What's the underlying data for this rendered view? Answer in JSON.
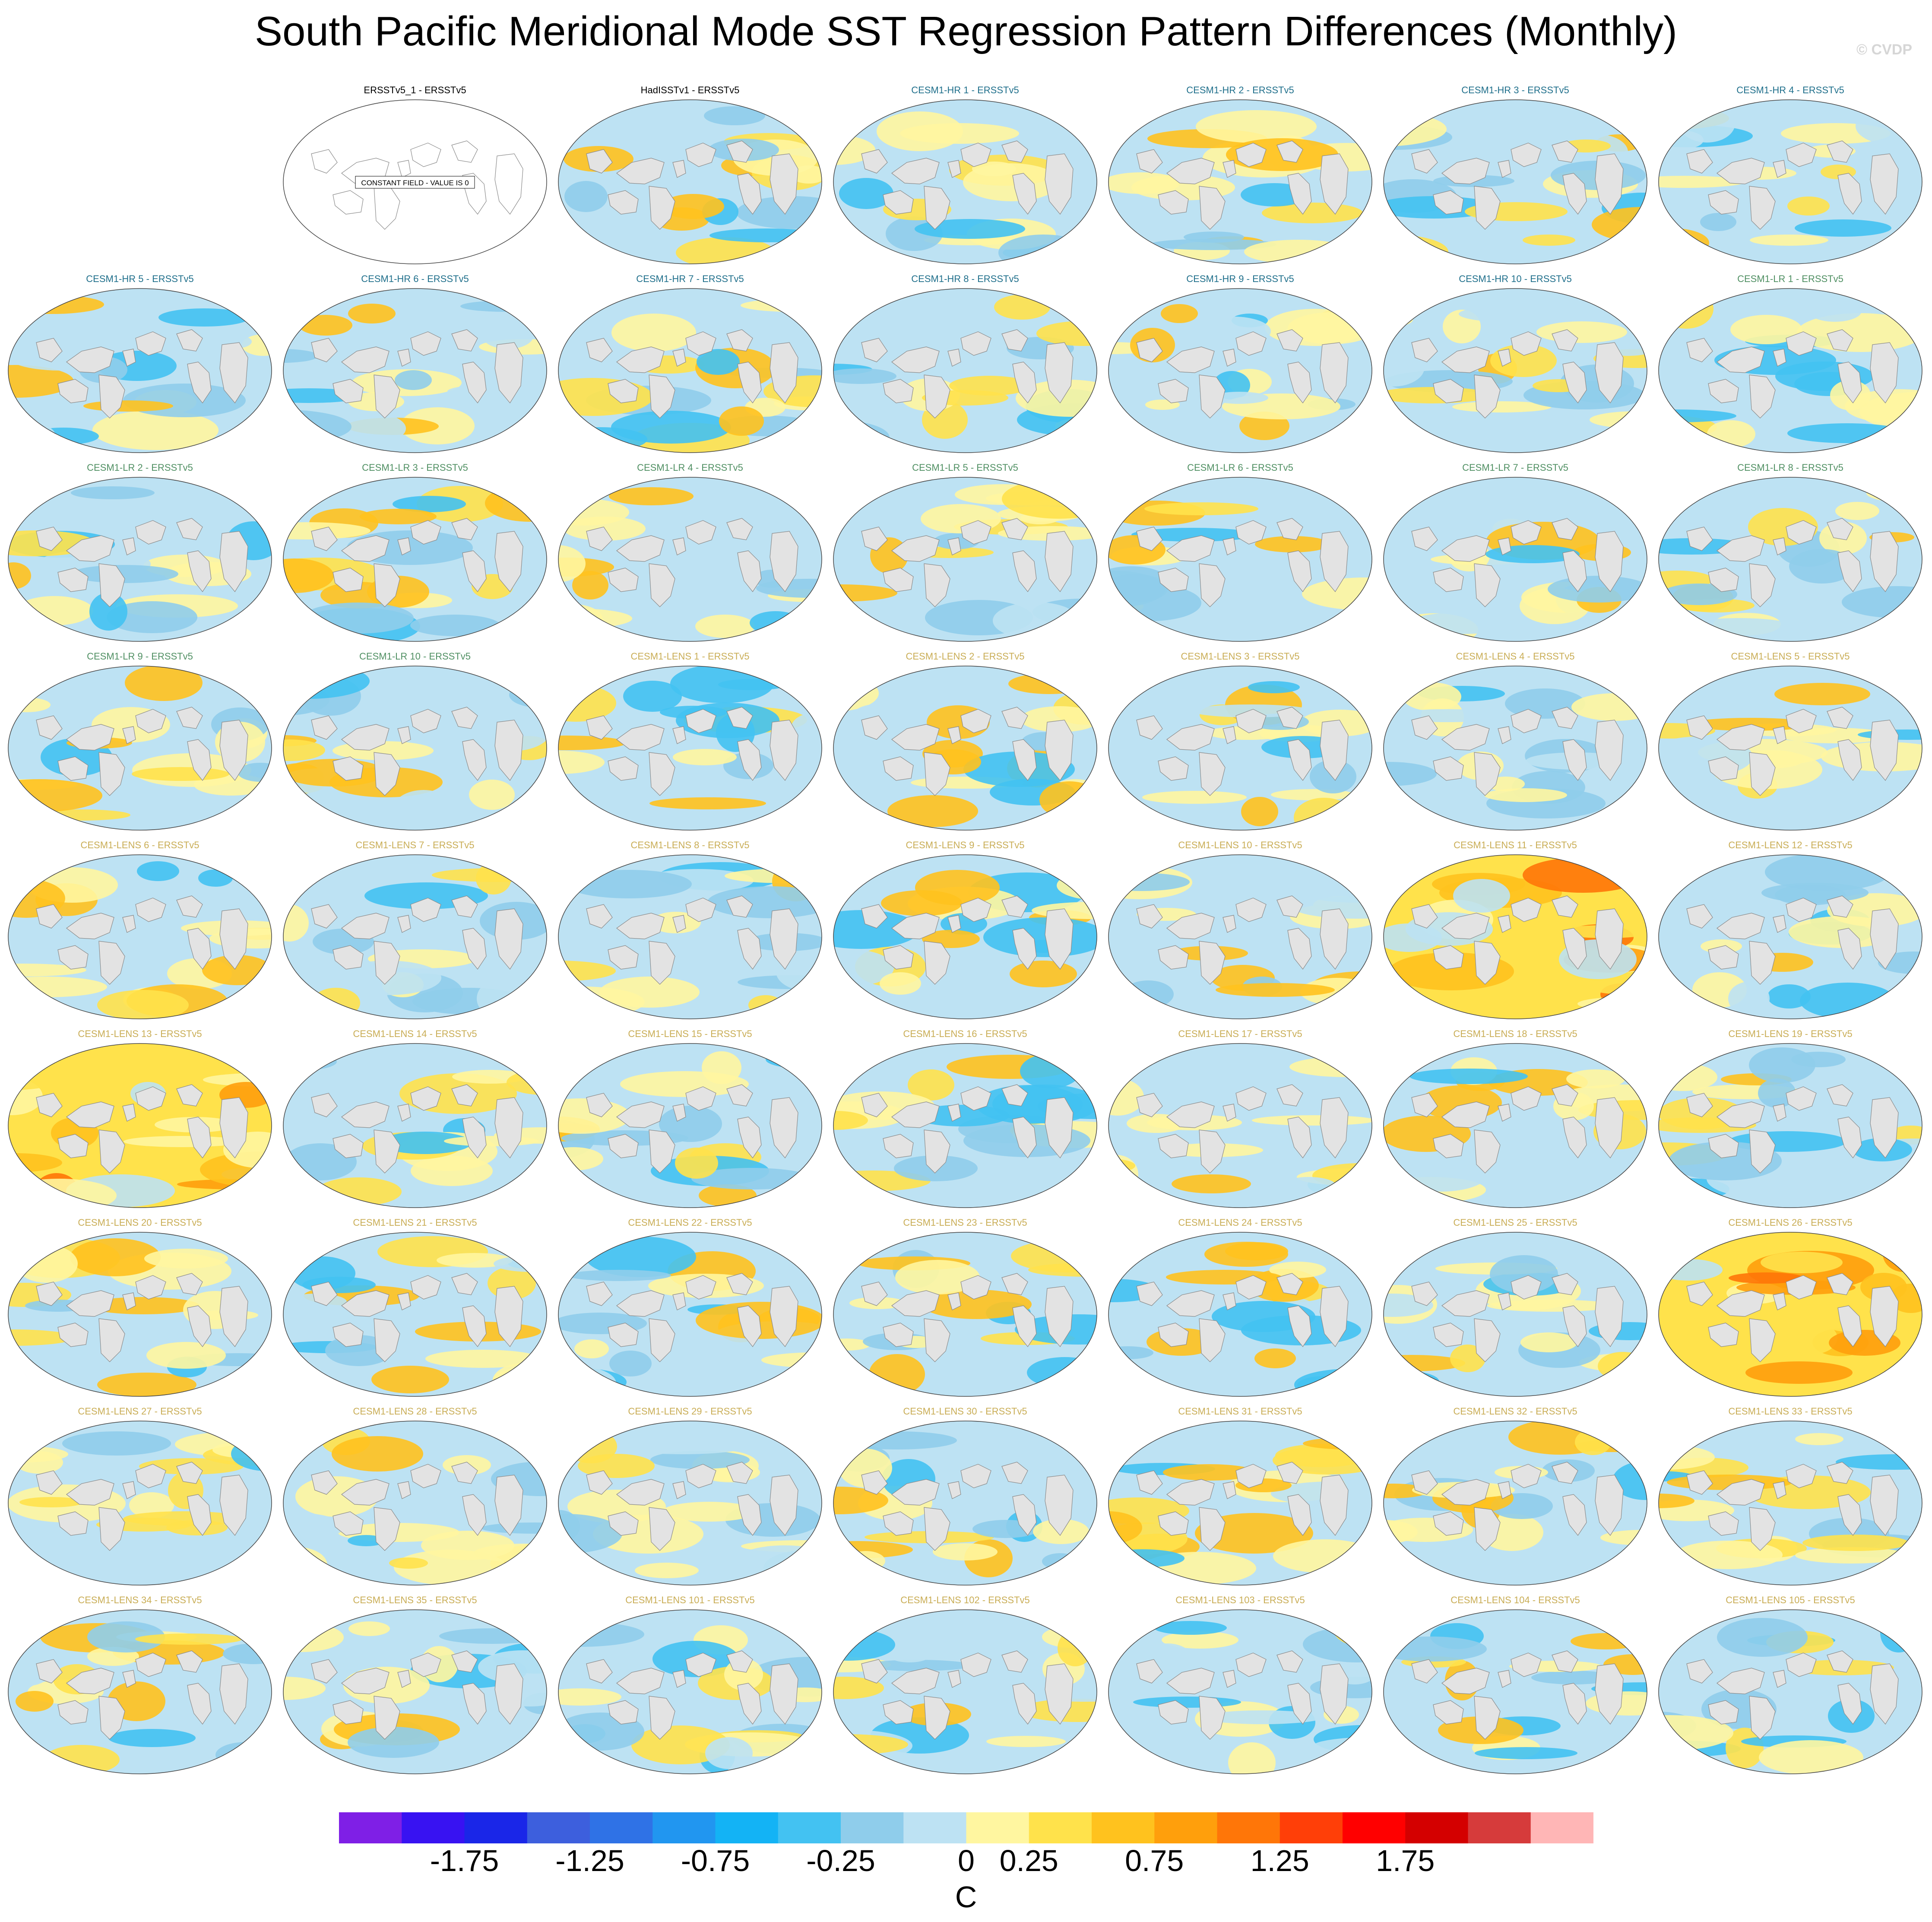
{
  "header": {
    "title": "South Pacific Meridional Mode SST Regression Pattern Differences (Monthly)",
    "watermark": "© CVDP"
  },
  "constant_field_label": "CONSTANT FIELD - VALUE IS 0",
  "panels": [
    {
      "title": "ERSSTv5_1 - ERSSTv5",
      "group": "obs",
      "constant": true
    },
    {
      "title": "HadISSTv1 - ERSSTv5",
      "group": "obs"
    },
    {
      "title": "CESM1-HR 1 - ERSSTv5",
      "group": "hr"
    },
    {
      "title": "CESM1-HR 2 - ERSSTv5",
      "group": "hr"
    },
    {
      "title": "CESM1-HR 3 - ERSSTv5",
      "group": "hr"
    },
    {
      "title": "CESM1-HR 4 - ERSSTv5",
      "group": "hr"
    },
    {
      "title": "CESM1-HR 5 - ERSSTv5",
      "group": "hr"
    },
    {
      "title": "CESM1-HR 6 - ERSSTv5",
      "group": "hr"
    },
    {
      "title": "CESM1-HR 7 - ERSSTv5",
      "group": "hr"
    },
    {
      "title": "CESM1-HR 8 - ERSSTv5",
      "group": "hr"
    },
    {
      "title": "CESM1-HR 9 - ERSSTv5",
      "group": "hr"
    },
    {
      "title": "CESM1-HR 10 - ERSSTv5",
      "group": "hr"
    },
    {
      "title": "CESM1-LR 1 - ERSSTv5",
      "group": "lr"
    },
    {
      "title": "CESM1-LR 2 - ERSSTv5",
      "group": "lr"
    },
    {
      "title": "CESM1-LR 3 - ERSSTv5",
      "group": "lr"
    },
    {
      "title": "CESM1-LR 4 - ERSSTv5",
      "group": "lr"
    },
    {
      "title": "CESM1-LR 5 - ERSSTv5",
      "group": "lr"
    },
    {
      "title": "CESM1-LR 6 - ERSSTv5",
      "group": "lr"
    },
    {
      "title": "CESM1-LR 7 - ERSSTv5",
      "group": "lr"
    },
    {
      "title": "CESM1-LR 8 - ERSSTv5",
      "group": "lr"
    },
    {
      "title": "CESM1-LR 9 - ERSSTv5",
      "group": "lr"
    },
    {
      "title": "CESM1-LR 10 - ERSSTv5",
      "group": "lr"
    },
    {
      "title": "CESM1-LENS 1 - ERSSTv5",
      "group": "lens"
    },
    {
      "title": "CESM1-LENS 2 - ERSSTv5",
      "group": "lens"
    },
    {
      "title": "CESM1-LENS 3 - ERSSTv5",
      "group": "lens"
    },
    {
      "title": "CESM1-LENS 4 - ERSSTv5",
      "group": "lens"
    },
    {
      "title": "CESM1-LENS 5 - ERSSTv5",
      "group": "lens"
    },
    {
      "title": "CESM1-LENS 6 - ERSSTv5",
      "group": "lens"
    },
    {
      "title": "CESM1-LENS 7 - ERSSTv5",
      "group": "lens"
    },
    {
      "title": "CESM1-LENS 8 - ERSSTv5",
      "group": "lens"
    },
    {
      "title": "CESM1-LENS 9 - ERSSTv5",
      "group": "lens"
    },
    {
      "title": "CESM1-LENS 10 - ERSSTv5",
      "group": "lens"
    },
    {
      "title": "CESM1-LENS 11 - ERSSTv5",
      "group": "lens",
      "strong": true
    },
    {
      "title": "CESM1-LENS 12 - ERSSTv5",
      "group": "lens"
    },
    {
      "title": "CESM1-LENS 13 - ERSSTv5",
      "group": "lens",
      "strong": true
    },
    {
      "title": "CESM1-LENS 14 - ERSSTv5",
      "group": "lens"
    },
    {
      "title": "CESM1-LENS 15 - ERSSTv5",
      "group": "lens"
    },
    {
      "title": "CESM1-LENS 16 - ERSSTv5",
      "group": "lens"
    },
    {
      "title": "CESM1-LENS 17 - ERSSTv5",
      "group": "lens"
    },
    {
      "title": "CESM1-LENS 18 - ERSSTv5",
      "group": "lens"
    },
    {
      "title": "CESM1-LENS 19 - ERSSTv5",
      "group": "lens"
    },
    {
      "title": "CESM1-LENS 20 - ERSSTv5",
      "group": "lens"
    },
    {
      "title": "CESM1-LENS 21 - ERSSTv5",
      "group": "lens"
    },
    {
      "title": "CESM1-LENS 22 - ERSSTv5",
      "group": "lens"
    },
    {
      "title": "CESM1-LENS 23 - ERSSTv5",
      "group": "lens"
    },
    {
      "title": "CESM1-LENS 24 - ERSSTv5",
      "group": "lens"
    },
    {
      "title": "CESM1-LENS 25 - ERSSTv5",
      "group": "lens"
    },
    {
      "title": "CESM1-LENS 26 - ERSSTv5",
      "group": "lens",
      "strong": true
    },
    {
      "title": "CESM1-LENS 27 - ERSSTv5",
      "group": "lens"
    },
    {
      "title": "CESM1-LENS 28 - ERSSTv5",
      "group": "lens"
    },
    {
      "title": "CESM1-LENS 29 - ERSSTv5",
      "group": "lens"
    },
    {
      "title": "CESM1-LENS 30 - ERSSTv5",
      "group": "lens"
    },
    {
      "title": "CESM1-LENS 31 - ERSSTv5",
      "group": "lens"
    },
    {
      "title": "CESM1-LENS 32 - ERSSTv5",
      "group": "lens"
    },
    {
      "title": "CESM1-LENS 33 - ERSSTv5",
      "group": "lens"
    },
    {
      "title": "CESM1-LENS 34 - ERSSTv5",
      "group": "lens"
    },
    {
      "title": "CESM1-LENS 35 - ERSSTv5",
      "group": "lens"
    },
    {
      "title": "CESM1-LENS 101 - ERSSTv5",
      "group": "lens"
    },
    {
      "title": "CESM1-LENS 102 - ERSSTv5",
      "group": "lens"
    },
    {
      "title": "CESM1-LENS 103 - ERSSTv5",
      "group": "lens"
    },
    {
      "title": "CESM1-LENS 104 - ERSSTv5",
      "group": "lens"
    },
    {
      "title": "CESM1-LENS 105 - ERSSTv5",
      "group": "lens"
    }
  ],
  "chart_data": {
    "type": "heatmap",
    "title": "South Pacific Meridional Mode SST Regression Pattern Differences (Monthly)",
    "panel_count": 62,
    "layout": "9 rows x 7 columns (first cell empty)",
    "colorbar": {
      "unit": "C",
      "tick_labels": [
        "-1.75",
        "-1.25",
        "-0.75",
        "-0.25",
        "0",
        "0.25",
        "0.75",
        "1.25",
        "1.75"
      ],
      "tick_values": [
        -1.75,
        -1.25,
        -0.75,
        -0.25,
        0,
        0.25,
        0.75,
        1.25,
        1.75
      ],
      "tick_edges": [
        2,
        4,
        6,
        8,
        10,
        11,
        13,
        15,
        17
      ],
      "colors": [
        "#7f1fe6",
        "#3812f2",
        "#1a26e8",
        "#3d5fdd",
        "#2f72e6",
        "#2196f0",
        "#13b3f5",
        "#43c2f2",
        "#8fcdeb",
        "#bde2f3",
        "#fff6a0",
        "#ffe24b",
        "#ffc21e",
        "#ff9f0c",
        "#ff7608",
        "#ff3f08",
        "#ff0000",
        "#d40000",
        "#d63b3b",
        "#ffb6b6"
      ]
    }
  }
}
